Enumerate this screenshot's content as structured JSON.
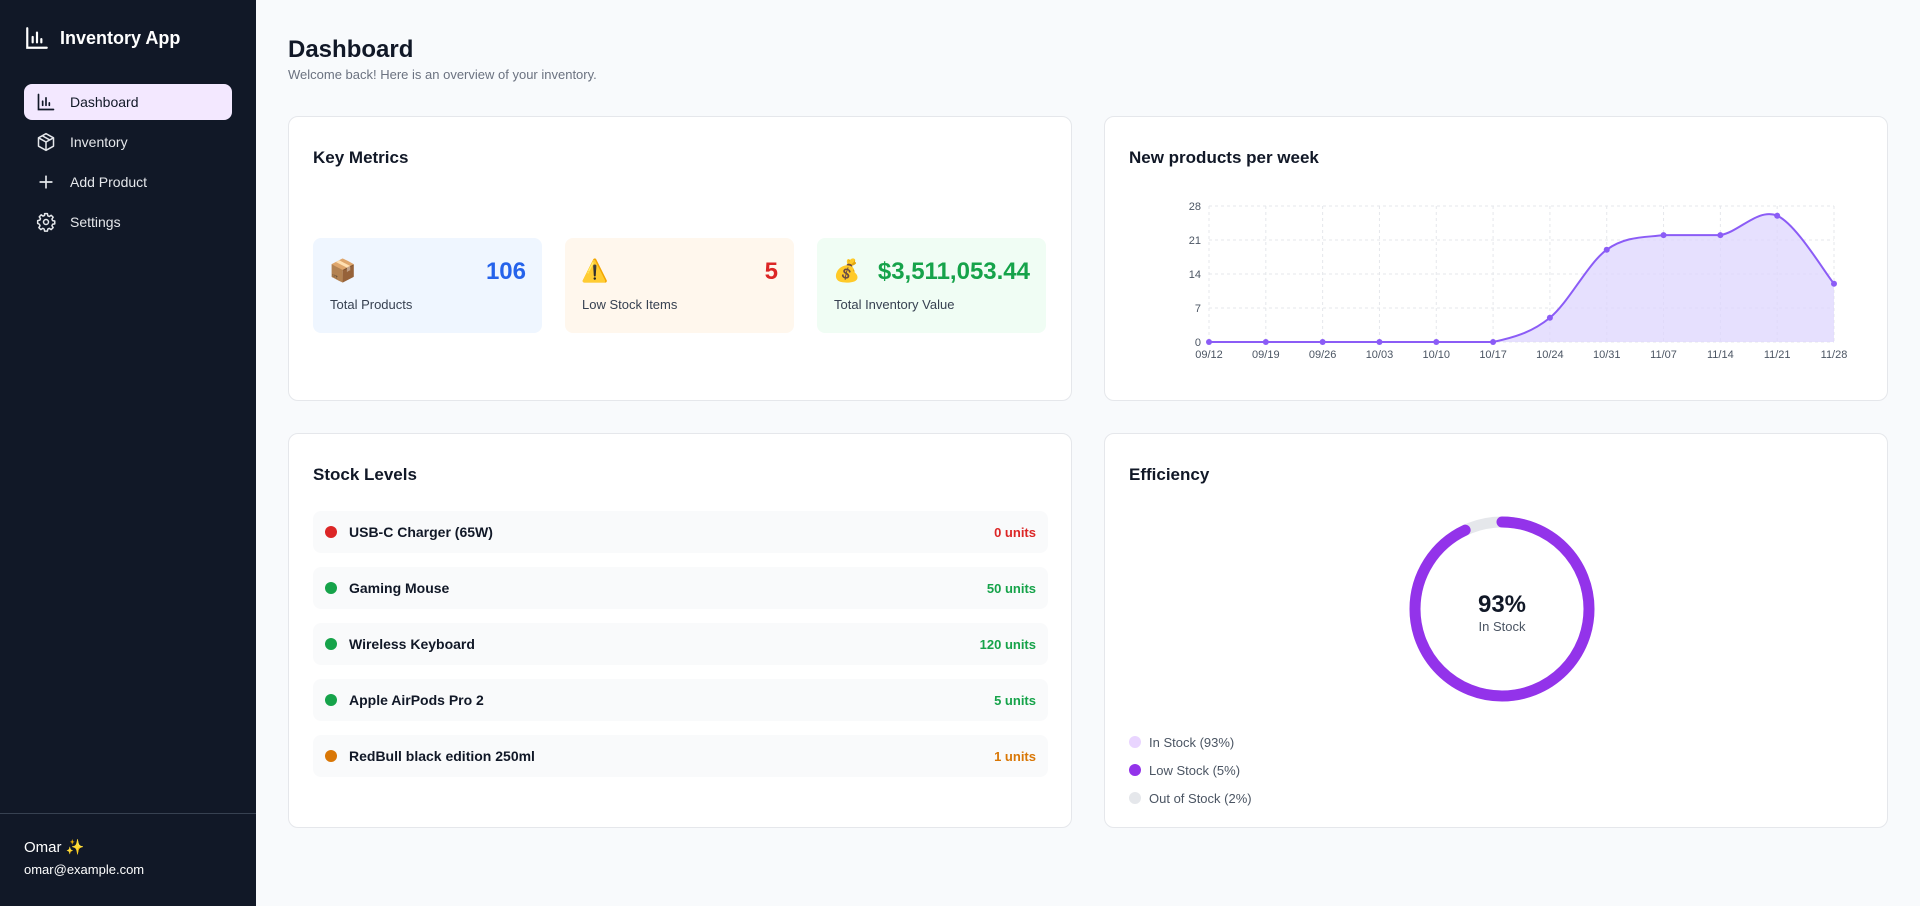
{
  "app": {
    "title": "Inventory App",
    "icon": "bar-chart-icon"
  },
  "nav": {
    "items": [
      {
        "label": "Dashboard",
        "icon": "bar-chart-icon",
        "active": true
      },
      {
        "label": "Inventory",
        "icon": "package-icon",
        "active": false
      },
      {
        "label": "Add Product",
        "icon": "plus-icon",
        "active": false
      },
      {
        "label": "Settings",
        "icon": "gear-icon",
        "active": false
      }
    ]
  },
  "user": {
    "name": "Omar ✨",
    "email": "omar@example.com"
  },
  "page": {
    "title": "Dashboard",
    "subtitle": "Welcome back! Here is an overview of your inventory."
  },
  "metrics": {
    "title": "Key Metrics",
    "tiles": [
      {
        "icon": "📦",
        "icon_name": "package-emoji-icon",
        "value": "106",
        "label": "Total Products",
        "color": "#2563eb"
      },
      {
        "icon": "⚠️",
        "icon_name": "warning-emoji-icon",
        "value": "5",
        "label": "Low Stock Items",
        "color": "#dc2626"
      },
      {
        "icon": "💰",
        "icon_name": "money-bag-emoji-icon",
        "value": "$3,511,053.44",
        "label": "Total Inventory Value",
        "color": "#16a34a"
      }
    ]
  },
  "weekly_chart": {
    "title": "New products per week",
    "chart_data": {
      "type": "area",
      "categories": [
        "09/12",
        "09/19",
        "09/26",
        "10/03",
        "10/10",
        "10/17",
        "10/24",
        "10/31",
        "11/07",
        "11/14",
        "11/21",
        "11/28"
      ],
      "series": [
        {
          "values": [
            0,
            0,
            0,
            0,
            0,
            0,
            5,
            19,
            22,
            22,
            26,
            12
          ]
        }
      ],
      "y_ticks": [
        "0",
        "7",
        "14",
        "21",
        "28"
      ],
      "ylim": [
        0,
        28
      ],
      "grid": true,
      "color": "#8b5cf6"
    }
  },
  "stock": {
    "title": "Stock Levels",
    "items": [
      {
        "name": "USB-C Charger (65W)",
        "units": "0 units",
        "color": "#dc2626"
      },
      {
        "name": "Gaming Mouse",
        "units": "50 units",
        "color": "#16a34a"
      },
      {
        "name": "Wireless Keyboard",
        "units": "120 units",
        "color": "#16a34a"
      },
      {
        "name": "Apple AirPods Pro 2",
        "units": "5 units",
        "color": "#16a34a"
      },
      {
        "name": "RedBull black edition 250ml",
        "units": "1 units",
        "color": "#d97706"
      }
    ]
  },
  "efficiency": {
    "title": "Efficiency",
    "value_label": "93%",
    "sub_label": "In Stock",
    "chart_data": {
      "type": "pie",
      "slices": [
        {
          "label": "In Stock (93%)",
          "value": 93,
          "color": "#e9d5ff"
        },
        {
          "label": "Low Stock (5%)",
          "value": 5,
          "color": "#9333ea"
        },
        {
          "label": "Out of Stock (2%)",
          "value": 2,
          "color": "#e5e7eb"
        }
      ]
    }
  }
}
